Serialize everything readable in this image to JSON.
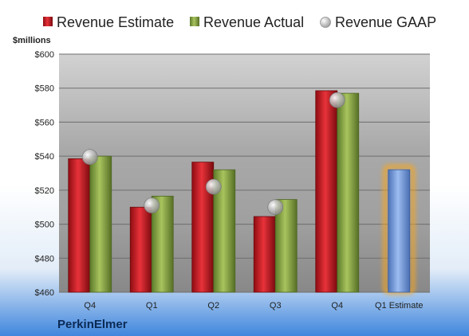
{
  "chart_data": {
    "type": "bar",
    "ylabel": "$millions",
    "ylim": [
      460,
      600
    ],
    "yticks": [
      "$460",
      "$480",
      "$500",
      "$520",
      "$540",
      "$560",
      "$580",
      "$600"
    ],
    "categories": [
      "Q4",
      "Q1",
      "Q2",
      "Q3",
      "Q4",
      "Q1 Estimate"
    ],
    "series": [
      {
        "name": "Revenue Estimate",
        "type": "bar",
        "color": "#c0141b",
        "values": [
          538.5,
          510,
          536.5,
          504.5,
          578.5,
          null
        ]
      },
      {
        "name": "Revenue Actual",
        "type": "bar",
        "color": "#8aa845",
        "values": [
          540,
          516.5,
          532,
          514.5,
          577,
          532
        ]
      },
      {
        "name": "Revenue GAAP",
        "type": "scatter",
        "color": "#b8b8b8",
        "values": [
          539.5,
          511,
          522,
          510,
          573,
          null
        ]
      }
    ],
    "highlight": {
      "category_index": 5,
      "color": "#6f95d4",
      "glow": "#f5a623"
    },
    "grid": true,
    "legend_position": "top"
  },
  "company": "PerkinElmer"
}
